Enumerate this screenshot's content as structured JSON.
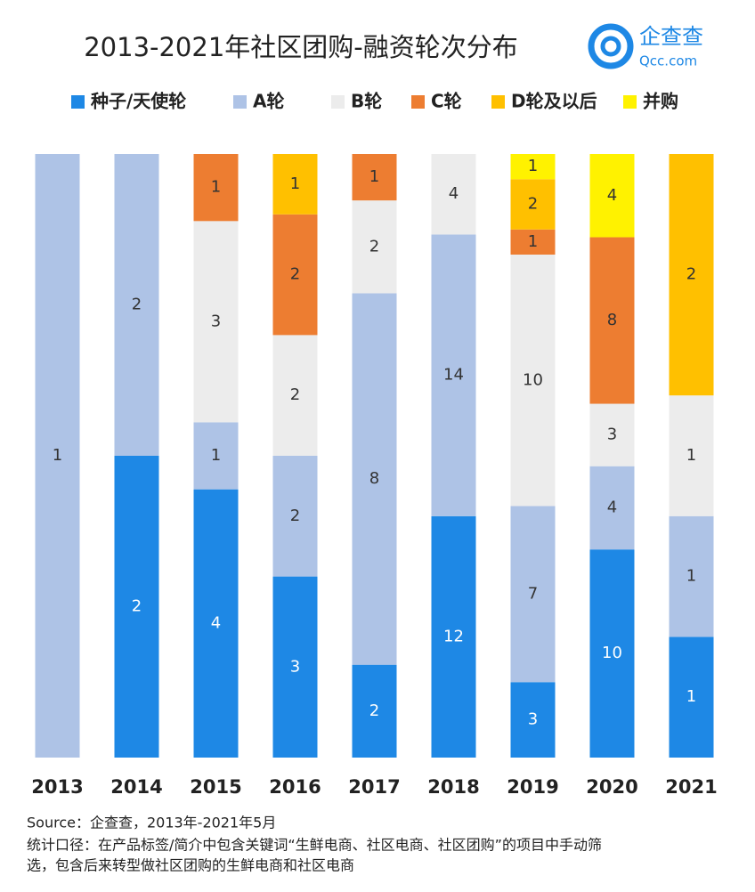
{
  "chart_data": {
    "type": "stacked_bar_100",
    "title": "2013-2021年社区团购-融资轮次分布",
    "categories": [
      "2013",
      "2014",
      "2015",
      "2016",
      "2017",
      "2018",
      "2019",
      "2020",
      "2021"
    ],
    "series": [
      {
        "name": "种子/天使轮",
        "color": "#1e88e5",
        "values": [
          null,
          2,
          4,
          3,
          2,
          12,
          3,
          10,
          1
        ]
      },
      {
        "name": "A轮",
        "color": "#aec3e6",
        "values": [
          1,
          2,
          1,
          2,
          8,
          14,
          7,
          4,
          1
        ]
      },
      {
        "name": "B轮",
        "color": "#ececec",
        "values": [
          null,
          null,
          3,
          2,
          2,
          4,
          10,
          3,
          1
        ]
      },
      {
        "name": "C轮",
        "color": "#ed7d31",
        "values": [
          null,
          null,
          1,
          2,
          1,
          null,
          1,
          8,
          null
        ]
      },
      {
        "name": "D轮及以后",
        "color": "#ffc000",
        "values": [
          null,
          null,
          null,
          1,
          null,
          null,
          2,
          null,
          2
        ]
      },
      {
        "name": "并购",
        "color": "#fff200",
        "values": [
          null,
          null,
          null,
          null,
          null,
          null,
          1,
          4,
          null
        ]
      }
    ],
    "legend": "top",
    "source": "Source：企查查，2013年-2021年5月",
    "note": [
      "统计口径：在产品标签/简介中包含关键词“生鲜电商、社区电商、社区团购”的项目中手动筛",
      "选，包含后来转型做社区团购的生鲜电商和社区电商"
    ]
  },
  "logo": {
    "name": "企查查",
    "domain": "Qcc.com"
  }
}
